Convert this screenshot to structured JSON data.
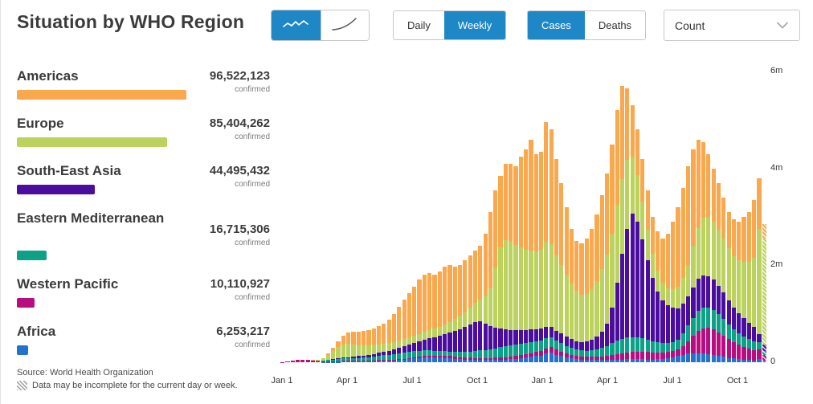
{
  "header": {
    "title": "Situation by WHO Region",
    "chart_type_toggle": {
      "selected": "weekly-bars",
      "options": [
        {
          "id": "weekly-bars",
          "icon": "squiggle-line-icon"
        },
        {
          "id": "cumulative",
          "icon": "cumulative-curve-icon"
        }
      ]
    },
    "frequency_toggle": {
      "options": [
        "Daily",
        "Weekly"
      ],
      "selected": "Weekly"
    },
    "metric_toggle": {
      "options": [
        "Cases",
        "Deaths"
      ],
      "selected": "Cases"
    },
    "count_dropdown": {
      "value": "Count"
    }
  },
  "regions": {
    "confirmed_label": "confirmed",
    "items": [
      {
        "name": "Americas",
        "value": "96,522,123",
        "color": "#F9A84D"
      },
      {
        "name": "Europe",
        "value": "85,404,262",
        "color": "#BBD35E"
      },
      {
        "name": "South-East Asia",
        "value": "44,495,432",
        "color": "#4A0D9E"
      },
      {
        "name": "Eastern Mediterranean",
        "value": "16,715,306",
        "color": "#0DA288"
      },
      {
        "name": "Western Pacific",
        "value": "10,110,927",
        "color": "#B80D80"
      },
      {
        "name": "Africa",
        "value": "6,253,217",
        "color": "#2272CE"
      }
    ]
  },
  "footer": {
    "source": "Source: World Health Organization",
    "note": "Data may be incomplete for the current day or week."
  },
  "chart_data": {
    "type": "bar",
    "stacked": true,
    "unit": "millions of weekly confirmed cases",
    "ylim": [
      0,
      6
    ],
    "y_ticks": [
      {
        "label": "0",
        "value": 0
      },
      {
        "label": "2m",
        "value": 2
      },
      {
        "label": "4m",
        "value": 4
      },
      {
        "label": "6m",
        "value": 6
      }
    ],
    "x_ticks": [
      {
        "label": "Jan 1",
        "offset": 2
      },
      {
        "label": "Apr 1",
        "offset": 83
      },
      {
        "label": "Jul 1",
        "offset": 164
      },
      {
        "label": "Oct 1",
        "offset": 245
      },
      {
        "label": "Jan 1",
        "offset": 326
      },
      {
        "label": "Apr 1",
        "offset": 407
      },
      {
        "label": "Jul 1",
        "offset": 488
      },
      {
        "label": "Oct 1",
        "offset": 569
      }
    ],
    "last_bar_incomplete": true,
    "series": [
      {
        "name": "Africa",
        "color": "#2272CE",
        "values": [
          0,
          0,
          0,
          0.001,
          0.001,
          0.001,
          0.001,
          0.001,
          0.002,
          0.004,
          0.006,
          0.008,
          0.01,
          0.012,
          0.014,
          0.016,
          0.018,
          0.021,
          0.024,
          0.028,
          0.032,
          0.034,
          0.04,
          0.048,
          0.058,
          0.068,
          0.078,
          0.088,
          0.096,
          0.1,
          0.098,
          0.093,
          0.086,
          0.078,
          0.069,
          0.061,
          0.054,
          0.049,
          0.046,
          0.044,
          0.044,
          0.045,
          0.047,
          0.05,
          0.055,
          0.06,
          0.068,
          0.08,
          0.095,
          0.11,
          0.125,
          0.14,
          0.18,
          0.2,
          0.155,
          0.13,
          0.105,
          0.085,
          0.068,
          0.056,
          0.05,
          0.047,
          0.046,
          0.046,
          0.048,
          0.051,
          0.054,
          0.057,
          0.06,
          0.062,
          0.062,
          0.06,
          0.058,
          0.058,
          0.062,
          0.07,
          0.085,
          0.105,
          0.13,
          0.155,
          0.175,
          0.18,
          0.18,
          0.175,
          0.165,
          0.15,
          0.13,
          0.11,
          0.09,
          0.075,
          0.06,
          0.05,
          0.042,
          0.037,
          0.06,
          0.03
        ]
      },
      {
        "name": "Western Pacific",
        "color": "#B80D80",
        "values": [
          0.003,
          0.01,
          0.03,
          0.045,
          0.05,
          0.042,
          0.03,
          0.02,
          0.015,
          0.014,
          0.015,
          0.017,
          0.018,
          0.018,
          0.016,
          0.015,
          0.015,
          0.015,
          0.015,
          0.015,
          0.015,
          0.015,
          0.015,
          0.015,
          0.016,
          0.018,
          0.022,
          0.027,
          0.032,
          0.037,
          0.042,
          0.046,
          0.049,
          0.05,
          0.049,
          0.047,
          0.045,
          0.043,
          0.042,
          0.042,
          0.043,
          0.045,
          0.047,
          0.05,
          0.053,
          0.056,
          0.06,
          0.065,
          0.072,
          0.08,
          0.09,
          0.1,
          0.11,
          0.115,
          0.105,
          0.092,
          0.08,
          0.07,
          0.063,
          0.06,
          0.06,
          0.063,
          0.068,
          0.076,
          0.086,
          0.1,
          0.115,
          0.13,
          0.14,
          0.15,
          0.155,
          0.155,
          0.15,
          0.142,
          0.135,
          0.128,
          0.125,
          0.128,
          0.14,
          0.18,
          0.26,
          0.36,
          0.46,
          0.52,
          0.55,
          0.53,
          0.49,
          0.44,
          0.39,
          0.34,
          0.3,
          0.27,
          0.24,
          0.215,
          0.2,
          0.12
        ]
      },
      {
        "name": "Eastern Mediterranean",
        "color": "#0DA288",
        "values": [
          0,
          0,
          0,
          0.001,
          0.001,
          0.002,
          0.004,
          0.008,
          0.015,
          0.025,
          0.035,
          0.045,
          0.05,
          0.052,
          0.055,
          0.058,
          0.062,
          0.068,
          0.075,
          0.085,
          0.095,
          0.1,
          0.11,
          0.12,
          0.13,
          0.135,
          0.13,
          0.122,
          0.114,
          0.106,
          0.098,
          0.092,
          0.09,
          0.092,
          0.098,
          0.108,
          0.12,
          0.132,
          0.144,
          0.156,
          0.168,
          0.18,
          0.195,
          0.21,
          0.225,
          0.235,
          0.24,
          0.24,
          0.235,
          0.23,
          0.222,
          0.215,
          0.21,
          0.2,
          0.185,
          0.17,
          0.155,
          0.142,
          0.132,
          0.128,
          0.13,
          0.14,
          0.155,
          0.175,
          0.2,
          0.25,
          0.28,
          0.3,
          0.31,
          0.31,
          0.29,
          0.275,
          0.255,
          0.235,
          0.215,
          0.2,
          0.19,
          0.19,
          0.195,
          0.26,
          0.33,
          0.38,
          0.42,
          0.43,
          0.42,
          0.4,
          0.37,
          0.34,
          0.3,
          0.27,
          0.24,
          0.215,
          0.195,
          0.18,
          0.15,
          0.09
        ]
      },
      {
        "name": "South-East Asia",
        "color": "#4A0D9E",
        "values": [
          0,
          0,
          0,
          0.001,
          0.001,
          0.001,
          0.002,
          0.003,
          0.004,
          0.006,
          0.01,
          0.015,
          0.02,
          0.026,
          0.03,
          0.036,
          0.042,
          0.05,
          0.058,
          0.068,
          0.08,
          0.088,
          0.1,
          0.115,
          0.13,
          0.15,
          0.17,
          0.195,
          0.22,
          0.25,
          0.28,
          0.315,
          0.35,
          0.39,
          0.43,
          0.47,
          0.515,
          0.56,
          0.6,
          0.6,
          0.54,
          0.47,
          0.42,
          0.38,
          0.345,
          0.32,
          0.3,
          0.285,
          0.27,
          0.26,
          0.25,
          0.24,
          0.23,
          0.22,
          0.21,
          0.2,
          0.19,
          0.18,
          0.175,
          0.175,
          0.185,
          0.21,
          0.26,
          0.34,
          0.47,
          0.72,
          1.2,
          1.75,
          2.25,
          2.55,
          2.4,
          2.05,
          1.65,
          1.3,
          1.05,
          0.88,
          0.77,
          0.7,
          0.65,
          0.62,
          0.6,
          0.63,
          0.66,
          0.66,
          0.64,
          0.62,
          0.59,
          0.55,
          0.5,
          0.45,
          0.41,
          0.37,
          0.335,
          0.305,
          0.17,
          0.12
        ]
      },
      {
        "name": "Europe",
        "color": "#BBD35E",
        "values": [
          0,
          0,
          0,
          0,
          0.001,
          0.002,
          0.004,
          0.01,
          0.04,
          0.1,
          0.17,
          0.23,
          0.27,
          0.27,
          0.25,
          0.23,
          0.21,
          0.195,
          0.185,
          0.175,
          0.165,
          0.158,
          0.155,
          0.152,
          0.15,
          0.15,
          0.152,
          0.156,
          0.162,
          0.17,
          0.18,
          0.192,
          0.206,
          0.222,
          0.242,
          0.268,
          0.3,
          0.34,
          0.39,
          0.45,
          0.58,
          0.78,
          1.25,
          1.68,
          1.84,
          1.82,
          1.75,
          1.7,
          1.65,
          1.63,
          1.6,
          1.62,
          1.75,
          1.7,
          1.55,
          1.42,
          1.28,
          1.14,
          1.03,
          0.98,
          0.99,
          1.05,
          1.15,
          1.28,
          1.42,
          1.53,
          1.6,
          1.55,
          1.42,
          1.18,
          0.95,
          0.78,
          0.62,
          0.5,
          0.42,
          0.37,
          0.36,
          0.39,
          0.44,
          0.52,
          0.64,
          0.85,
          1.05,
          1.2,
          1.23,
          1.2,
          1.15,
          1.11,
          1.08,
          1.06,
          1.1,
          1.16,
          1.26,
          1.42,
          2.17,
          2.2
        ]
      },
      {
        "name": "Americas",
        "color": "#F9A84D",
        "values": [
          0,
          0,
          0,
          0,
          0.001,
          0.002,
          0.003,
          0.006,
          0.012,
          0.031,
          0.064,
          0.115,
          0.182,
          0.242,
          0.265,
          0.275,
          0.293,
          0.311,
          0.343,
          0.379,
          0.413,
          0.485,
          0.58,
          0.69,
          0.806,
          0.899,
          1.008,
          1.112,
          1.176,
          1.177,
          1.102,
          1.132,
          1.189,
          1.168,
          1.082,
          1.046,
          1.066,
          1.076,
          1.078,
          1.108,
          1.275,
          1.58,
          1.591,
          1.48,
          1.582,
          1.609,
          1.632,
          1.88,
          2.078,
          2.29,
          2.013,
          2.035,
          2.47,
          2.365,
          1.995,
          1.688,
          1.39,
          1.133,
          1.032,
          1.051,
          1.135,
          1.24,
          1.371,
          1.533,
          1.676,
          1.849,
          1.951,
          1.913,
          1.47,
          1.048,
          0.943,
          0.88,
          0.817,
          0.765,
          0.818,
          0.902,
          1.12,
          1.387,
          1.645,
          1.865,
          2.045,
          2.0,
          1.83,
          1.565,
          1.295,
          1.1,
          0.97,
          0.85,
          0.74,
          0.755,
          0.79,
          0.935,
          1.028,
          1.193,
          1.05,
          0.29
        ]
      }
    ]
  }
}
